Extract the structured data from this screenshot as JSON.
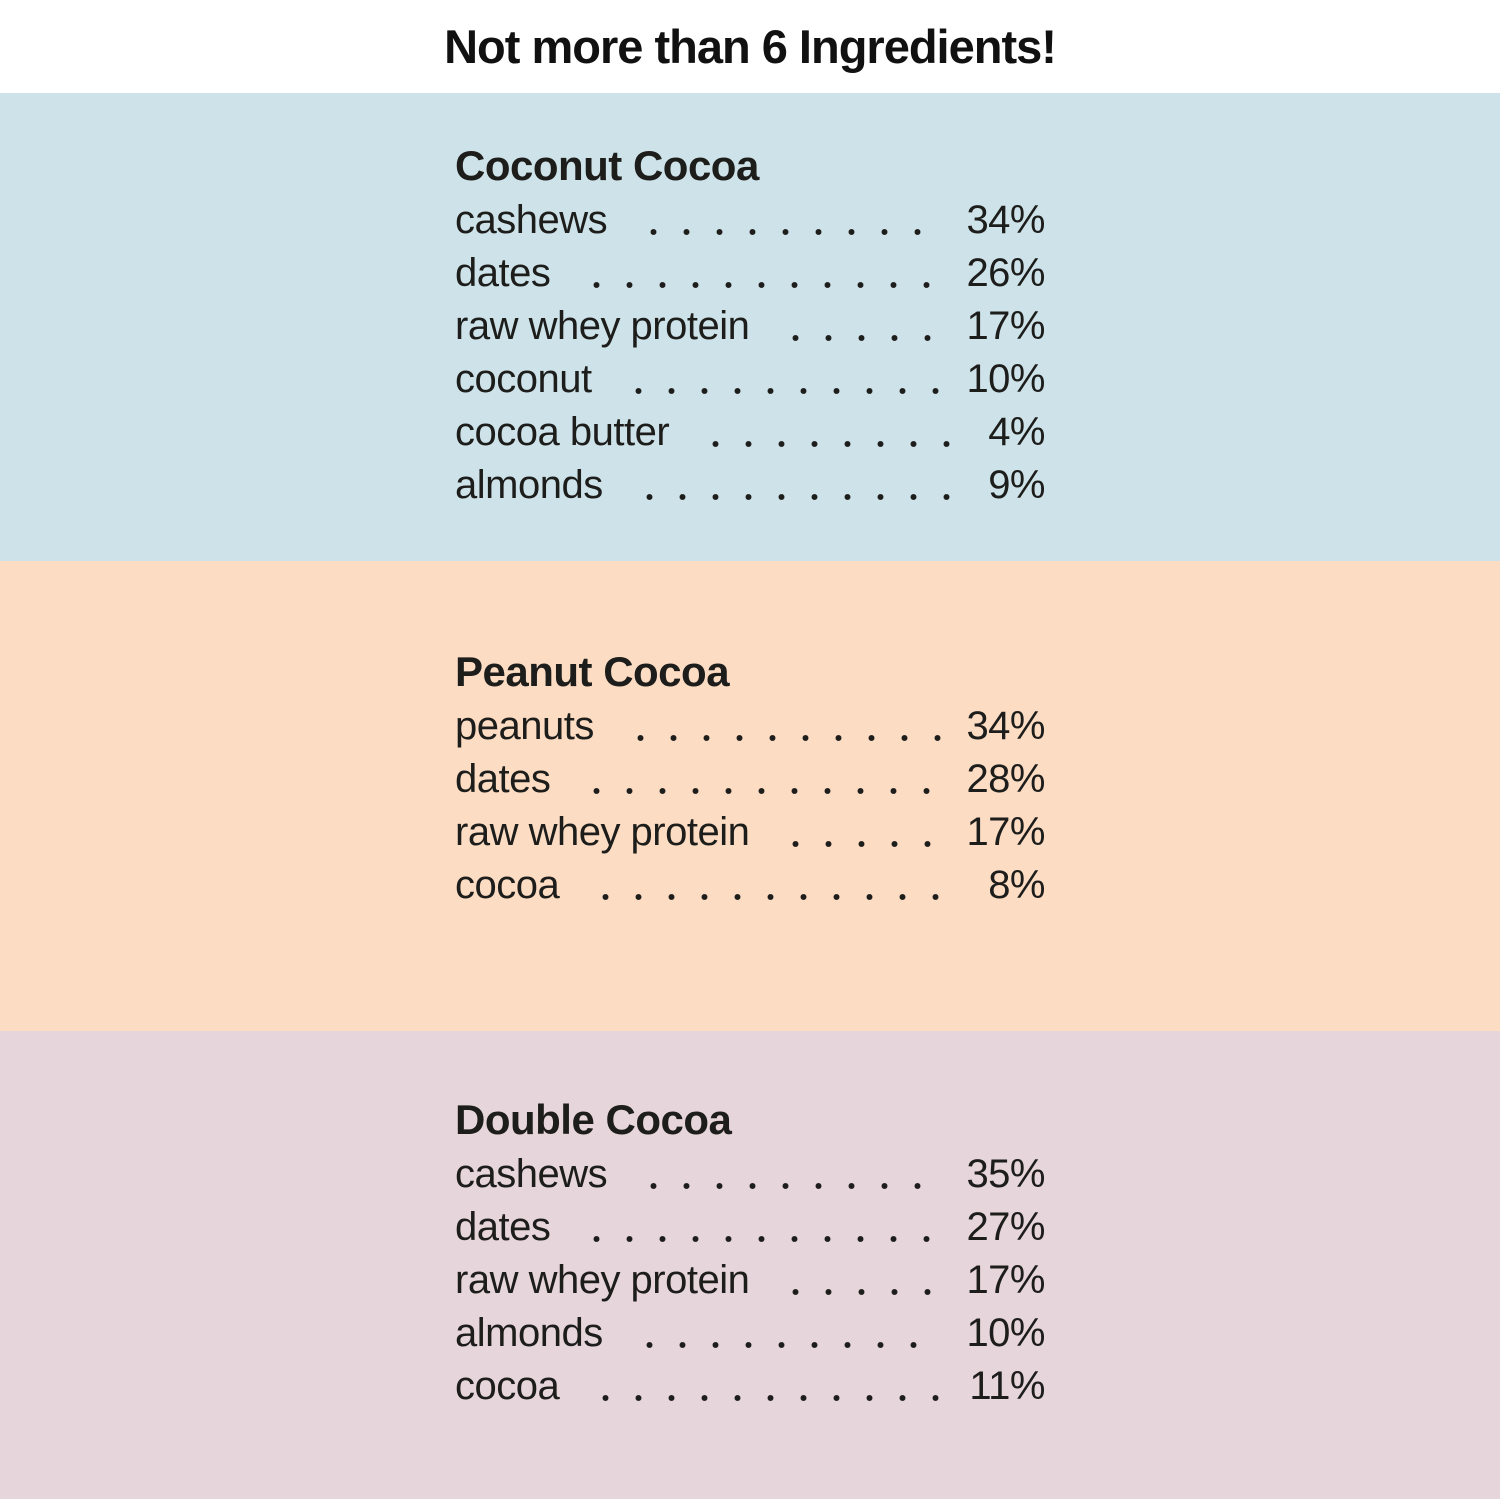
{
  "title": "Not more than 6 Ingredients!",
  "colors": {
    "page_background": "#ffffff",
    "text": "#1d1d1b",
    "section_1_background": "#cee3e9",
    "section_2_background": "#fcdcc3",
    "section_3_background": "#e6d5db"
  },
  "sections": [
    {
      "name": "Coconut Cocoa",
      "ingredients": [
        {
          "label": "cashews",
          "value": "34%"
        },
        {
          "label": "dates",
          "value": "26%"
        },
        {
          "label": "raw whey protein",
          "value": "17%"
        },
        {
          "label": "coconut",
          "value": "10%"
        },
        {
          "label": "cocoa butter",
          "value": "4%"
        },
        {
          "label": "almonds",
          "value": "9%"
        }
      ]
    },
    {
      "name": "Peanut Cocoa",
      "ingredients": [
        {
          "label": "peanuts",
          "value": "34%"
        },
        {
          "label": "dates",
          "value": "28%"
        },
        {
          "label": "raw whey protein",
          "value": "17%"
        },
        {
          "label": "cocoa",
          "value": "8%"
        }
      ]
    },
    {
      "name": "Double Cocoa",
      "ingredients": [
        {
          "label": "cashews",
          "value": "35%"
        },
        {
          "label": "dates",
          "value": "27%"
        },
        {
          "label": "raw whey protein",
          "value": "17%"
        },
        {
          "label": "almonds",
          "value": "10%"
        },
        {
          "label": "cocoa",
          "value": "11%"
        }
      ]
    }
  ]
}
